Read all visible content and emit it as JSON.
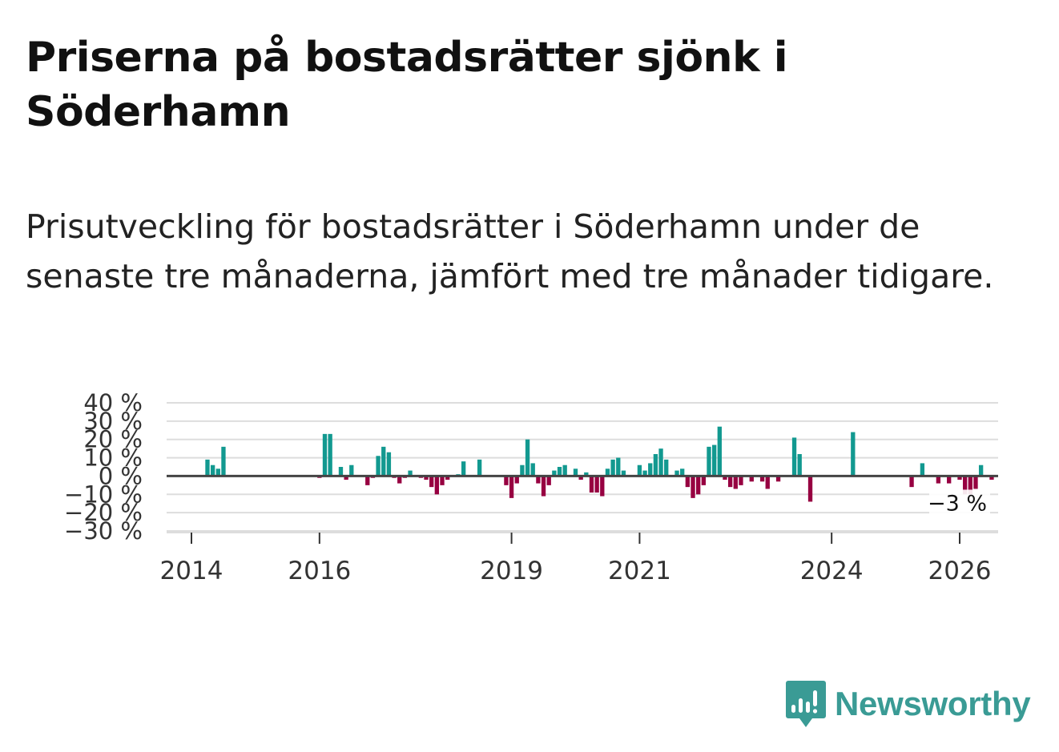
{
  "title": "Priserna på bostadsrätter sjönk i Söderhamn",
  "subtitle": "Prisutveckling för bostadsrätter i Söderhamn under de senaste tre månaderna, jämfört med tre månader tidigare.",
  "brand": "Newsworthy",
  "colors": {
    "positive": "#129990",
    "negative": "#970041",
    "accent": "#3a9b95"
  },
  "chart_data": {
    "type": "bar",
    "title": "",
    "xlabel": "",
    "ylabel": "",
    "ylim": [
      -30,
      40
    ],
    "y_ticks": [
      40,
      30,
      20,
      10,
      0,
      -10,
      -20,
      -30
    ],
    "y_tick_labels": [
      "40 %",
      "30 %",
      "20 %",
      "10 %",
      "0 %",
      "−10 %",
      "−20 %",
      "−30 %"
    ],
    "x_tick_values": [
      2014,
      2016,
      2019,
      2021,
      2024,
      2026
    ],
    "x_tick_labels": [
      "2014",
      "2016",
      "2019",
      "2021",
      "2024",
      "2026"
    ],
    "annotation": "−3 %",
    "series": [
      {
        "name": "Prisutveckling",
        "unit": "%",
        "start": "2014-01",
        "values": [
          0,
          0,
          0,
          9,
          6,
          4,
          16,
          0,
          0,
          0,
          0,
          0,
          0,
          0,
          0,
          0,
          0,
          0,
          0,
          0,
          0,
          0,
          0,
          0,
          -1,
          23,
          23,
          0,
          5,
          -2,
          6,
          0,
          0,
          -5,
          -1,
          11,
          16,
          13,
          -1,
          -4,
          -1,
          3,
          0,
          -1,
          -2,
          -6,
          -10,
          -5,
          -2,
          0,
          1,
          8,
          0,
          0,
          9,
          0,
          0,
          0,
          0,
          -5,
          -12,
          -4,
          6,
          20,
          7,
          -4,
          -11,
          -5,
          3,
          5,
          6,
          0,
          4,
          -2,
          2,
          -9,
          -9,
          -11,
          4,
          9,
          10,
          3,
          0,
          0,
          6,
          3,
          7,
          12,
          15,
          9,
          0,
          3,
          4,
          -6,
          -12,
          -10,
          -5,
          16,
          17,
          27,
          -2,
          -6,
          -7,
          -5,
          0,
          -3,
          0,
          -3,
          -7,
          0,
          -3,
          0,
          0,
          21,
          12,
          0,
          -14,
          0,
          0,
          0,
          0,
          0,
          0,
          0,
          24,
          0,
          0,
          0,
          0,
          0,
          0,
          0,
          0,
          0,
          0,
          -6,
          0,
          7,
          0,
          0,
          -4,
          0,
          -4,
          0,
          -2,
          -10,
          -10,
          -7,
          6,
          0,
          -2,
          0
        ]
      }
    ]
  }
}
